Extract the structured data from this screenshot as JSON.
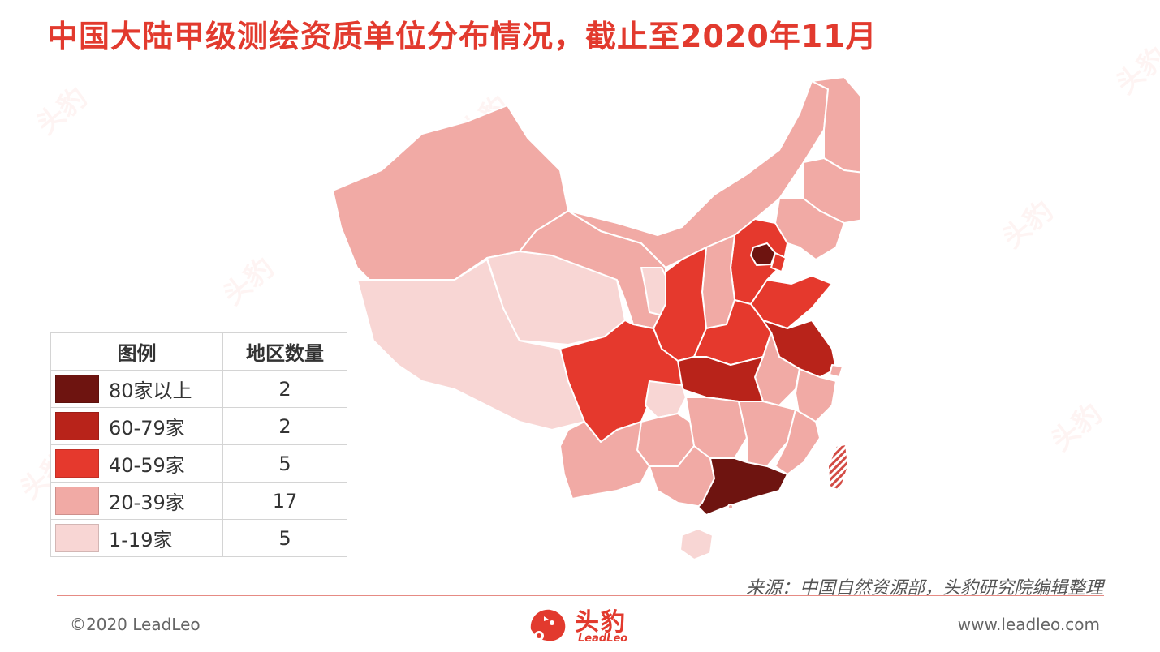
{
  "title": "中国大陆甲级测绘资质单位分布情况，截止至2020年11月",
  "legend": {
    "headers": [
      "图例",
      "地区数量"
    ],
    "rows": [
      {
        "label": "80家以上",
        "count": "2",
        "color": "#6e1410"
      },
      {
        "label": "60-79家",
        "count": "2",
        "color": "#b8231a"
      },
      {
        "label": "40-59家",
        "count": "5",
        "color": "#e5392d"
      },
      {
        "label": "20-39家",
        "count": "17",
        "color": "#f1aaa5"
      },
      {
        "label": "1-19家",
        "count": "5",
        "color": "#f8d6d4"
      }
    ]
  },
  "source": "来源：中国自然资源部，头豹研究院编辑整理",
  "footer": {
    "copyright": "©2020 LeadLeo",
    "website": "www.leadleo.com"
  },
  "logo": {
    "cn": "头豹",
    "en": "LeadLeo"
  },
  "watermark_text": "头豹",
  "colors": {
    "accent": "#e23a2e",
    "border": "#ffffff",
    "taiwan_hatch": "#d34b44"
  }
}
